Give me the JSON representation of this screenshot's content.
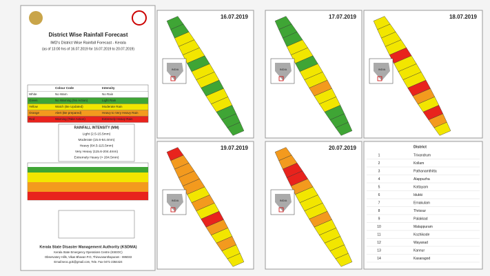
{
  "header": {
    "title": "District Wise Rainfall Forecast",
    "subtitle": "IMD's District Wise Rainfall Forecast - Kerala",
    "period": "(as of 13:00 hrs of 16.07.2019 for 16.07.2019 to 20.07.2019)"
  },
  "color_code": {
    "headers": [
      "Colour Code",
      "Intensity"
    ],
    "rows": [
      [
        "White",
        "No Warn",
        "No Rain"
      ],
      [
        "Green",
        "No Warning (No Action)",
        "Light Rain"
      ],
      [
        "Yellow",
        "Watch (Be Updated)",
        "Moderate Rain"
      ],
      [
        "Orange",
        "Alert (Be prepared)",
        "Heavy to Very Heavy Rain"
      ],
      [
        "Red",
        "Warning (Take Action)",
        "Extremely Heavy Rain"
      ]
    ],
    "fills": [
      "#ffffff",
      "#3fa535",
      "#f2e600",
      "#f39a1e",
      "#e8231d"
    ]
  },
  "intensity": {
    "title": "RAINFALL INTENSITY (MM)",
    "rows": [
      "Light (2.5-15.5mm)",
      "Moderate (15.6-64.4mm)",
      "Heavy (64.5-115.5mm)",
      "Very Heavy (115.6-204.4mm)",
      "Extremely Heavy (> 204.5mm)"
    ]
  },
  "footer": {
    "org": "Kerala State Disaster Management Authority (KSDMA)",
    "lines": [
      "Kerala State Emergency Operations Centre (KSEOC)",
      "Observatory Hills, Vikas Bhavan P.O, Thiruvananthapuram - 695033",
      "Email:seoc.gok@gmail.com, Tele. Fax 0471-2364424"
    ]
  },
  "inset_label": "INDIA",
  "maps": [
    {
      "date": "16.07.2019",
      "colors": [
        "#3fa535",
        "#3fa535",
        "#f2e600",
        "#f2e600",
        "#f2e600",
        "#3fa535",
        "#f2e600",
        "#f2e600",
        "#3fa535",
        "#f2e600",
        "#f2e600",
        "#3fa535",
        "#3fa535",
        "#3fa535"
      ]
    },
    {
      "date": "17.07.2019",
      "colors": [
        "#3fa535",
        "#3fa535",
        "#3fa535",
        "#f2e600",
        "#f2e600",
        "#3fa535",
        "#f2e600",
        "#f2e600",
        "#f39a1e",
        "#f2e600",
        "#f2e600",
        "#3fa535",
        "#3fa535",
        "#3fa535"
      ]
    },
    {
      "date": "18.07.2019",
      "colors": [
        "#f2e600",
        "#f2e600",
        "#f2e600",
        "#f2e600",
        "#e8231d",
        "#f2e600",
        "#f2e600",
        "#f2e600",
        "#e8231d",
        "#f39a1e",
        "#f2e600",
        "#e8231d",
        "#f39a1e",
        "#f2e600"
      ]
    },
    {
      "date": "19.07.2019",
      "colors": [
        "#e8231d",
        "#f39a1e",
        "#f39a1e",
        "#f39a1e",
        "#f39a1e",
        "#f2e600",
        "#f39a1e",
        "#f2e600",
        "#e8231d",
        "#f39a1e",
        "#f2e600",
        "#f39a1e",
        "#f2e600",
        "#f2e600"
      ]
    },
    {
      "date": "20.07.2019",
      "colors": [
        "#f39a1e",
        "#f39a1e",
        "#e8231d",
        "#e8231d",
        "#f39a1e",
        "#f2e600",
        "#f2e600",
        "#f2e600",
        "#f39a1e",
        "#f2e600",
        "#f2e600",
        "#f2e600",
        "#f2e600",
        "#f2e600"
      ]
    }
  ],
  "districts": {
    "header": "District",
    "rows": [
      [
        "1",
        "Trivandrum"
      ],
      [
        "2",
        "Kollam"
      ],
      [
        "3",
        "Pathanamthitta"
      ],
      [
        "4",
        "Alappuzha"
      ],
      [
        "5",
        "Kottayam"
      ],
      [
        "6",
        "Idukki"
      ],
      [
        "7",
        "Ernakulam"
      ],
      [
        "8",
        "Thrissur"
      ],
      [
        "9",
        "Palakkad"
      ],
      [
        "10",
        "Malappuram"
      ],
      [
        "11",
        "Kozhikode"
      ],
      [
        "12",
        "Wayanad"
      ],
      [
        "13",
        "Kannur"
      ],
      [
        "14",
        "Kasaragod"
      ]
    ]
  }
}
